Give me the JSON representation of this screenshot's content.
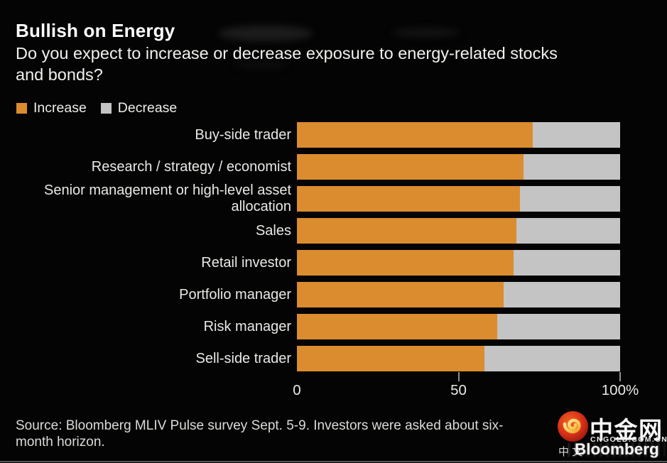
{
  "header": {
    "title": "Bullish on Energy",
    "subtitle_lines": [
      "Do you expect to increase or decrease exposure to energy-related stocks",
      "and bonds?"
    ]
  },
  "legend": {
    "items": [
      {
        "label": "Increase",
        "color": "#db8c2e"
      },
      {
        "label": "Decrease",
        "color": "#c4c4c4"
      }
    ]
  },
  "chart_data": {
    "type": "bar",
    "orientation": "horizontal",
    "stacked": true,
    "title": "Bullish on Energy",
    "question": "Do you expect to increase or decrease exposure to energy-related stocks and bonds?",
    "categories": [
      "Buy-side trader",
      "Research / strategy / economist",
      "Senior management or high-level asset allocation",
      "Sales",
      "Retail investor",
      "Portfolio manager",
      "Risk manager",
      "Sell-side trader"
    ],
    "series": [
      {
        "name": "Increase",
        "color": "#db8c2e",
        "values": [
          73,
          70,
          69,
          68,
          67,
          64,
          62,
          58
        ]
      },
      {
        "name": "Decrease",
        "color": "#c4c4c4",
        "values": [
          27,
          30,
          31,
          32,
          33,
          36,
          38,
          42
        ]
      }
    ],
    "xlim": [
      0,
      100
    ],
    "xticks": [
      {
        "label": "0",
        "value": 0
      },
      {
        "label": "50",
        "value": 50
      },
      {
        "label": "100%",
        "value": 100
      }
    ],
    "tick_marks": [
      50,
      100
    ],
    "grid": false,
    "legend_position": "top-left"
  },
  "footer": {
    "source_lines": [
      "Source: Bloomberg MLIV Pulse survey Sept. 5-9. Investors were asked about six-",
      "month horizon."
    ]
  },
  "watermark": {
    "brand": "中金网",
    "domain": "CNGOLD.COM.CN",
    "cn_label": "中 文",
    "bloomberg": "Bloomberg"
  }
}
